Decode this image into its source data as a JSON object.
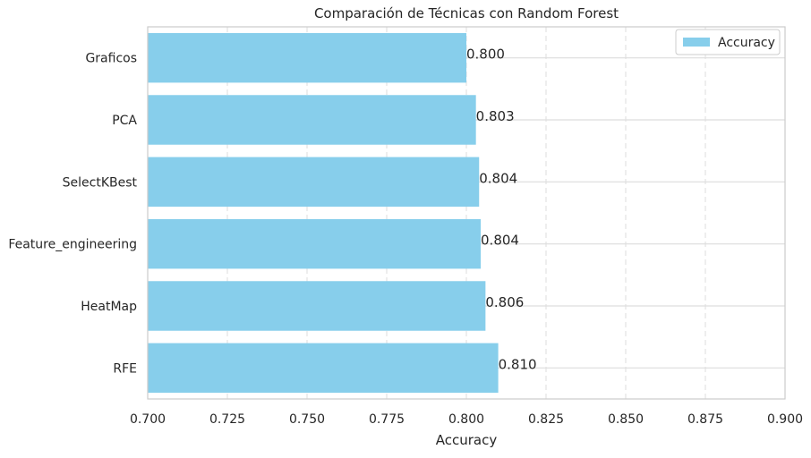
{
  "chart_data": {
    "type": "bar",
    "orientation": "horizontal",
    "title": "Comparación de Técnicas con Random Forest",
    "xlabel": "Accuracy",
    "ylabel": "",
    "categories": [
      "Graficos",
      "PCA",
      "SelectKBest",
      "Feature_engineering",
      "HeatMap",
      "RFE"
    ],
    "series": [
      {
        "name": "Accuracy",
        "values": [
          0.8,
          0.803,
          0.804,
          0.8045,
          0.806,
          0.81
        ],
        "labels": [
          "0.800",
          "0.803",
          "0.804",
          "0.804",
          "0.806",
          "0.810"
        ]
      }
    ],
    "xlim": [
      0.7,
      0.9
    ],
    "xticks": [
      0.7,
      0.725,
      0.75,
      0.775,
      0.8,
      0.825,
      0.85,
      0.875,
      0.9
    ],
    "xtick_labels": [
      "0.700",
      "0.725",
      "0.750",
      "0.775",
      "0.800",
      "0.825",
      "0.850",
      "0.875",
      "0.900"
    ],
    "grid": true,
    "legend_position": "top-right",
    "colors": {
      "bar": "#87ceeb",
      "grid": "#dddddd",
      "axes_edge": "#cccccc",
      "text": "#333333"
    }
  }
}
